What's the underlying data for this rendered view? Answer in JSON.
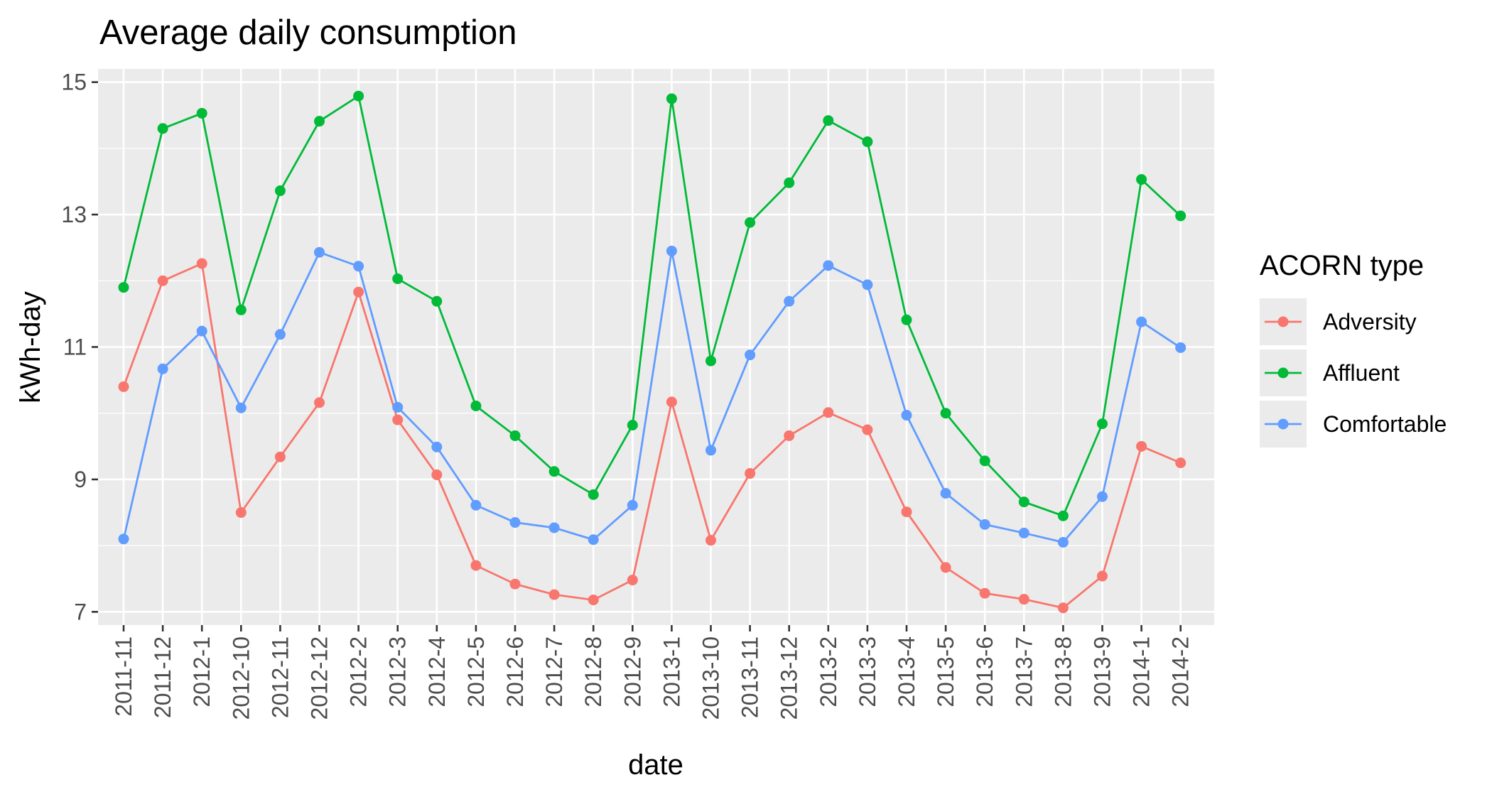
{
  "chart_data": {
    "type": "line",
    "title": "Average daily consumption",
    "xlabel": "date",
    "ylabel": "kWh-day",
    "categories": [
      "2011-11",
      "2011-12",
      "2012-1",
      "2012-10",
      "2012-11",
      "2012-12",
      "2012-2",
      "2012-3",
      "2012-4",
      "2012-5",
      "2012-6",
      "2012-7",
      "2012-8",
      "2012-9",
      "2013-1",
      "2013-10",
      "2013-11",
      "2013-12",
      "2013-2",
      "2013-3",
      "2013-4",
      "2013-5",
      "2013-6",
      "2013-7",
      "2013-8",
      "2013-9",
      "2014-1",
      "2014-2"
    ],
    "ylim": [
      6.8,
      15.2
    ],
    "yticks": [
      7,
      9,
      11,
      13,
      15
    ],
    "grid": true,
    "legend": {
      "title": "ACORN type",
      "placement": "right"
    },
    "series": [
      {
        "name": "Adversity",
        "color": "#f8766d",
        "values": [
          10.4,
          12.0,
          12.26,
          8.5,
          9.34,
          10.16,
          11.83,
          9.9,
          9.07,
          7.7,
          7.42,
          7.26,
          7.18,
          7.48,
          10.17,
          8.08,
          9.09,
          9.66,
          10.01,
          9.75,
          8.51,
          7.67,
          7.28,
          7.19,
          7.06,
          7.54,
          9.5,
          9.25
        ]
      },
      {
        "name": "Affluent",
        "color": "#00ba38",
        "values": [
          11.9,
          14.3,
          14.53,
          11.56,
          13.36,
          14.41,
          14.79,
          12.03,
          11.69,
          10.11,
          9.66,
          9.12,
          8.77,
          9.82,
          14.75,
          10.79,
          12.88,
          13.48,
          14.42,
          14.1,
          11.41,
          10.0,
          9.28,
          8.66,
          8.45,
          9.84,
          13.53,
          12.98
        ]
      },
      {
        "name": "Comfortable",
        "color": "#619cff",
        "values": [
          8.1,
          10.67,
          11.24,
          10.08,
          11.19,
          12.43,
          12.22,
          10.09,
          9.49,
          8.61,
          8.35,
          8.27,
          8.09,
          8.61,
          12.45,
          9.44,
          10.88,
          11.69,
          12.23,
          11.94,
          9.97,
          8.79,
          8.32,
          8.19,
          8.05,
          8.74,
          11.38,
          10.99
        ]
      }
    ]
  }
}
